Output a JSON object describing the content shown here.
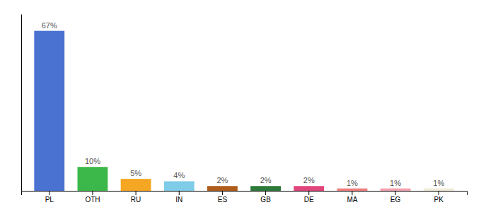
{
  "chart_data": {
    "type": "bar",
    "categories": [
      "PL",
      "OTH",
      "RU",
      "IN",
      "ES",
      "GB",
      "DE",
      "MA",
      "EG",
      "PK"
    ],
    "values": [
      67,
      10,
      5,
      4,
      2,
      2,
      2,
      1,
      1,
      1
    ],
    "value_labels": [
      "67%",
      "10%",
      "5%",
      "4%",
      "2%",
      "2%",
      "2%",
      "1%",
      "1%",
      "1%"
    ],
    "colors": [
      "#4a72d1",
      "#3cb84a",
      "#f5a623",
      "#7ecce8",
      "#b05c1a",
      "#2d7a3a",
      "#e0457b",
      "#f08080",
      "#f4a0b0",
      "#f0ead8"
    ],
    "ylim": [
      0,
      74
    ],
    "data_labels": true,
    "tick_labels": "x",
    "grid": false
  }
}
